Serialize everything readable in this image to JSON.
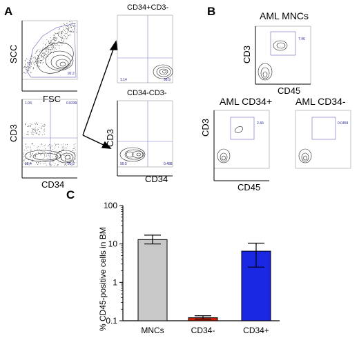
{
  "panels": {
    "a": "A",
    "b": "B",
    "c": "C"
  },
  "flow": {
    "scatter_fsc": {
      "xlabel": "FSC",
      "ylabel": "SCC",
      "gate": "92.2"
    },
    "cd3_cd34": {
      "xlabel": "CD34",
      "ylabel": "CD3",
      "q": [
        "1.03",
        "0.0239",
        "18.4",
        "80.5"
      ]
    },
    "cd34pos": {
      "title": "CD34+CD3-",
      "q": [
        "1.14",
        "98.9"
      ]
    },
    "cd34neg": {
      "title": "CD34-CD3-",
      "xlabel": "CD34",
      "ylabel": "CD3",
      "q": [
        "99.5",
        "0.488"
      ]
    },
    "aml_mnc": {
      "title": "AML MNCs",
      "xlabel": "CD45",
      "ylabel": "CD3",
      "gate": "7.46"
    },
    "aml_cd34pos": {
      "title": "AML CD34+",
      "xlabel": "CD45",
      "ylabel": "CD3",
      "gate": "2.46"
    },
    "aml_cd34neg": {
      "title": "AML CD34-",
      "gate": "0.0459"
    }
  },
  "colors": {
    "mncs": "#c8c8c8",
    "cd34neg": "#cc2200",
    "cd34pos": "#1a28e6",
    "gate": "#7a7ac8"
  },
  "chart_data": {
    "type": "bar",
    "ylabel": "% CD45-positive cells in BM",
    "yscale": "log",
    "ylim": [
      0.1,
      100
    ],
    "yticks": [
      "0.1",
      "1",
      "10",
      "100"
    ],
    "categories": [
      "MNCs",
      "CD34-",
      "CD34+"
    ],
    "values": [
      13,
      0.12,
      6.5
    ],
    "error_low": [
      10,
      0.11,
      2.5
    ],
    "error_high": [
      17,
      0.135,
      10.5
    ]
  }
}
